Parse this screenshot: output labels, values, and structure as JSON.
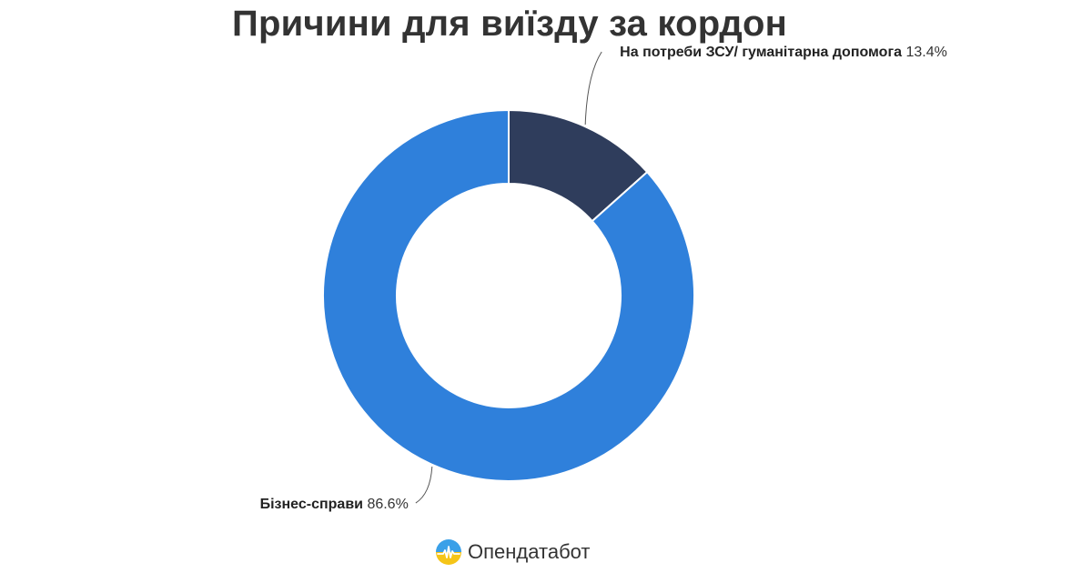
{
  "chart_data": {
    "type": "pie",
    "variant": "donut",
    "title": "Причини для виїзду за кордон",
    "slices": [
      {
        "label": "На потреби ЗСУ/ гуманітарна допомога",
        "value": 13.4,
        "value_label": "13.4%",
        "color": "#2f3d5c"
      },
      {
        "label": "Бізнес-справи",
        "value": 86.6,
        "value_label": "86.6%",
        "color": "#2f80db"
      }
    ]
  },
  "brand": {
    "name": "Опендатабот",
    "icon": "opendatabot-logo-icon"
  }
}
